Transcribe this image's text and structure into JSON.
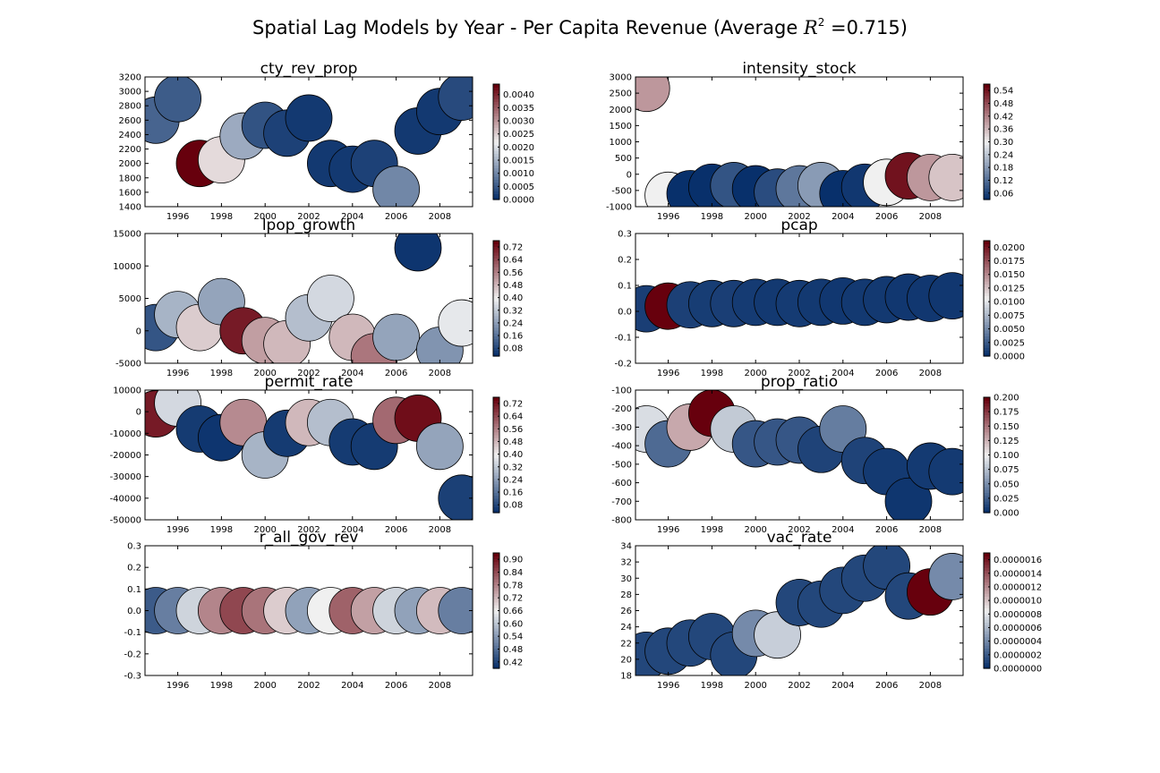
{
  "figure": {
    "title_prefix": "Spatial Lag Models by Year - Per Capita Revenue  (Average ",
    "title_r": "R",
    "title_exp": "2",
    "title_suffix": " =0.715)"
  },
  "chart_data": [
    {
      "type": "scatter",
      "title": "cty_rev_prop",
      "x": [
        1995,
        1996,
        1997,
        1998,
        1999,
        2000,
        2001,
        2002,
        2003,
        2004,
        2005,
        2006,
        2007,
        2008,
        2009
      ],
      "y": [
        2600,
        2900,
        2000,
        2050,
        2380,
        2530,
        2420,
        2630,
        2000,
        1920,
        2000,
        1640,
        2450,
        2720,
        2920
      ],
      "c": [
        0.0006,
        0.0005,
        0.0044,
        0.0024,
        0.0014,
        0.0004,
        0.0002,
        0.0001,
        0.0001,
        0.0001,
        0.0002,
        0.001,
        0.0001,
        0.0001,
        0.0003
      ],
      "xlim": [
        1994.5,
        2009.5
      ],
      "ylim": [
        1400,
        3200
      ],
      "yticks": [
        "1400",
        "1600",
        "1800",
        "2000",
        "2200",
        "2400",
        "2600",
        "2800",
        "3000",
        "3200"
      ],
      "xticks": [
        "1996",
        "1998",
        "2000",
        "2002",
        "2004",
        "2006",
        "2008"
      ],
      "cbar": {
        "min": 0,
        "max": 0.0044,
        "ticks": [
          "0.0000",
          "0.0005",
          "0.0010",
          "0.0015",
          "0.0020",
          "0.0025",
          "0.0030",
          "0.0035",
          "0.0040"
        ]
      }
    },
    {
      "type": "scatter",
      "title": "intensity_stock",
      "x": [
        1995,
        1996,
        1997,
        1998,
        1999,
        2000,
        2001,
        2002,
        2003,
        2004,
        2005,
        2006,
        2007,
        2008,
        2009
      ],
      "y": [
        2650,
        -650,
        -600,
        -400,
        -350,
        -450,
        -550,
        -450,
        -350,
        -600,
        -400,
        -250,
        -50,
        -100,
        -100
      ],
      "c": [
        0.4,
        0.3,
        0.03,
        0.02,
        0.08,
        0.03,
        0.07,
        0.13,
        0.18,
        0.01,
        0.04,
        0.3,
        0.55,
        0.4,
        0.35
      ],
      "xlim": [
        1994.5,
        2009.5
      ],
      "ylim": [
        -1000,
        3000
      ],
      "yticks": [
        "-1000",
        "-500",
        "0",
        "500",
        "1000",
        "1500",
        "2000",
        "2500",
        "3000"
      ],
      "xticks": [
        "1996",
        "1998",
        "2000",
        "2002",
        "2004",
        "2006",
        "2008"
      ],
      "cbar": {
        "min": 0.03,
        "max": 0.57,
        "ticks": [
          "0.06",
          "0.12",
          "0.18",
          "0.24",
          "0.30",
          "0.36",
          "0.42",
          "0.48",
          "0.54"
        ]
      }
    },
    {
      "type": "scatter",
      "title": "lpop_growth",
      "x": [
        1995,
        1996,
        1997,
        1998,
        1999,
        2000,
        2001,
        2002,
        2003,
        2004,
        2005,
        2006,
        2007,
        2008,
        2009
      ],
      "y": [
        500,
        2500,
        500,
        4500,
        0,
        -1500,
        -2000,
        2000,
        5000,
        -1000,
        -4000,
        -1000,
        12800,
        -3000,
        1200
      ],
      "c": [
        0.1,
        0.28,
        0.45,
        0.25,
        0.72,
        0.52,
        0.48,
        0.3,
        0.35,
        0.48,
        0.58,
        0.25,
        0.04,
        0.22,
        0.38
      ],
      "xlim": [
        1994.5,
        2009.5
      ],
      "ylim": [
        -5000,
        15000
      ],
      "yticks": [
        "-5000",
        "0",
        "5000",
        "10000",
        "15000"
      ],
      "xticks": [
        "1996",
        "1998",
        "2000",
        "2002",
        "2004",
        "2006",
        "2008"
      ],
      "cbar": {
        "min": 0.03,
        "max": 0.76,
        "ticks": [
          "0.08",
          "0.16",
          "0.24",
          "0.32",
          "0.40",
          "0.48",
          "0.56",
          "0.64",
          "0.72"
        ]
      }
    },
    {
      "type": "scatter",
      "title": "pcap",
      "x": [
        1995,
        1996,
        1997,
        1998,
        1999,
        2000,
        2001,
        2002,
        2003,
        2004,
        2005,
        2006,
        2007,
        2008,
        2009
      ],
      "y": [
        0.01,
        0.02,
        0.025,
        0.03,
        0.03,
        0.035,
        0.035,
        0.03,
        0.035,
        0.04,
        0.035,
        0.045,
        0.055,
        0.05,
        0.06
      ],
      "c": [
        0.0008,
        0.0212,
        0.0009,
        0.0007,
        0.0008,
        0.0006,
        0.0005,
        0.0006,
        0.0005,
        0.0004,
        0.0005,
        0.0005,
        0.0004,
        0.0004,
        0.0004
      ],
      "xlim": [
        1994.5,
        2009.5
      ],
      "ylim": [
        -0.2,
        0.3
      ],
      "yticks": [
        "-0.2",
        "-0.1",
        "0.0",
        "0.1",
        "0.2",
        "0.3"
      ],
      "xticks": [
        "1996",
        "1998",
        "2000",
        "2002",
        "2004",
        "2006",
        "2008"
      ],
      "cbar": {
        "min": 0,
        "max": 0.0212,
        "ticks": [
          "0.0000",
          "0.0025",
          "0.0050",
          "0.0075",
          "0.0100",
          "0.0125",
          "0.0150",
          "0.0175",
          "0.0200"
        ]
      }
    },
    {
      "type": "scatter",
      "title": "permit_rate",
      "x": [
        1995,
        1996,
        1997,
        1998,
        1999,
        2000,
        2001,
        2002,
        2003,
        2004,
        2005,
        2006,
        2007,
        2008,
        2009
      ],
      "y": [
        -1000,
        4000,
        -8000,
        -12000,
        -5000,
        -20000,
        -10000,
        -5000,
        -5000,
        -14000,
        -16000,
        -4000,
        -3000,
        -16000,
        -40000
      ],
      "c": [
        0.72,
        0.35,
        0.05,
        0.04,
        0.55,
        0.28,
        0.05,
        0.48,
        0.3,
        0.05,
        0.05,
        0.6,
        0.74,
        0.25,
        0.06
      ],
      "xlim": [
        1994.5,
        2009.5
      ],
      "ylim": [
        -50000,
        10000
      ],
      "yticks": [
        "-50000",
        "-40000",
        "-30000",
        "-20000",
        "-10000",
        "0",
        "10000"
      ],
      "xticks": [
        "1996",
        "1998",
        "2000",
        "2002",
        "2004",
        "2006",
        "2008"
      ],
      "cbar": {
        "min": 0.03,
        "max": 0.76,
        "ticks": [
          "0.08",
          "0.16",
          "0.24",
          "0.32",
          "0.40",
          "0.48",
          "0.56",
          "0.64",
          "0.72"
        ]
      }
    },
    {
      "type": "scatter",
      "title": "prop_ratio",
      "x": [
        1995,
        1996,
        1997,
        1998,
        1999,
        2000,
        2001,
        2002,
        2003,
        2004,
        2005,
        2006,
        2007,
        2008,
        2009
      ],
      "y": [
        -310,
        -390,
        -300,
        -225,
        -310,
        -390,
        -380,
        -370,
        -420,
        -310,
        -480,
        -540,
        -700,
        -510,
        -540
      ],
      "c": [
        0.09,
        0.03,
        0.13,
        0.2,
        0.08,
        0.02,
        0.02,
        0.02,
        0.01,
        0.04,
        0.01,
        0.005,
        0.003,
        0.005,
        0.005
      ],
      "xlim": [
        1994.5,
        2009.5
      ],
      "ylim": [
        -800,
        -100
      ],
      "yticks": [
        "-800",
        "-700",
        "-600",
        "-500",
        "-400",
        "-300",
        "-200",
        "-100"
      ],
      "xticks": [
        "1996",
        "1998",
        "2000",
        "2002",
        "2004",
        "2006",
        "2008"
      ],
      "cbar": {
        "min": 0,
        "max": 0.2,
        "ticks": [
          "0.000",
          "0.025",
          "0.050",
          "0.075",
          "0.100",
          "0.125",
          "0.150",
          "0.175",
          "0.200"
        ]
      }
    },
    {
      "type": "scatter",
      "title": "r_all_gov_rev",
      "x": [
        1995,
        1996,
        1997,
        1998,
        1999,
        2000,
        2001,
        2002,
        2003,
        2004,
        2005,
        2006,
        2007,
        2008,
        2009
      ],
      "y": [
        0,
        0,
        0,
        0,
        0,
        0,
        0,
        0,
        0,
        0,
        0,
        0,
        0,
        0,
        0
      ],
      "c": [
        0.45,
        0.5,
        0.62,
        0.78,
        0.85,
        0.8,
        0.7,
        0.55,
        0.66,
        0.82,
        0.75,
        0.62,
        0.55,
        0.72,
        0.5
      ],
      "xlim": [
        1994.5,
        2009.5
      ],
      "ylim": [
        -0.3,
        0.3
      ],
      "yticks": [
        "-0.3",
        "-0.2",
        "-0.1",
        "0.0",
        "0.1",
        "0.2",
        "0.3"
      ],
      "xticks": [
        "1996",
        "1998",
        "2000",
        "2002",
        "2004",
        "2006",
        "2008"
      ],
      "cbar": {
        "min": 0.39,
        "max": 0.93,
        "ticks": [
          "0.42",
          "0.48",
          "0.54",
          "0.60",
          "0.66",
          "0.72",
          "0.78",
          "0.84",
          "0.90"
        ]
      }
    },
    {
      "type": "scatter",
      "title": "vac_rate",
      "x": [
        1995,
        1996,
        1997,
        1998,
        1999,
        2000,
        2001,
        2002,
        2003,
        2004,
        2005,
        2006,
        2007,
        2008,
        2009
      ],
      "y": [
        20.5,
        21,
        22,
        22.8,
        20.5,
        23.2,
        23,
        27,
        26.8,
        28.5,
        30,
        31.5,
        27.8,
        28.3,
        30.2
      ],
      "c": [
        1e-07,
        1e-07,
        1e-07,
        1e-07,
        1e-07,
        4e-07,
        7e-07,
        1e-07,
        1e-07,
        1e-07,
        1e-07,
        1e-07,
        1e-07,
        1.7e-06,
        4e-07
      ],
      "xlim": [
        1994.5,
        2009.5
      ],
      "ylim": [
        18,
        34
      ],
      "yticks": [
        "18",
        "20",
        "22",
        "24",
        "26",
        "28",
        "30",
        "32",
        "34"
      ],
      "xticks": [
        "1996",
        "1998",
        "2000",
        "2002",
        "2004",
        "2006",
        "2008"
      ],
      "cbar": {
        "min": 0,
        "max": 1.7e-06,
        "ticks": [
          "0.0000000",
          "0.0000002",
          "0.0000004",
          "0.0000006",
          "0.0000008",
          "0.0000010",
          "0.0000012",
          "0.0000014",
          "0.0000016"
        ]
      }
    }
  ],
  "colormap": {
    "low": "#08306b",
    "mid": "#f0f0f0",
    "high": "#67000d"
  }
}
